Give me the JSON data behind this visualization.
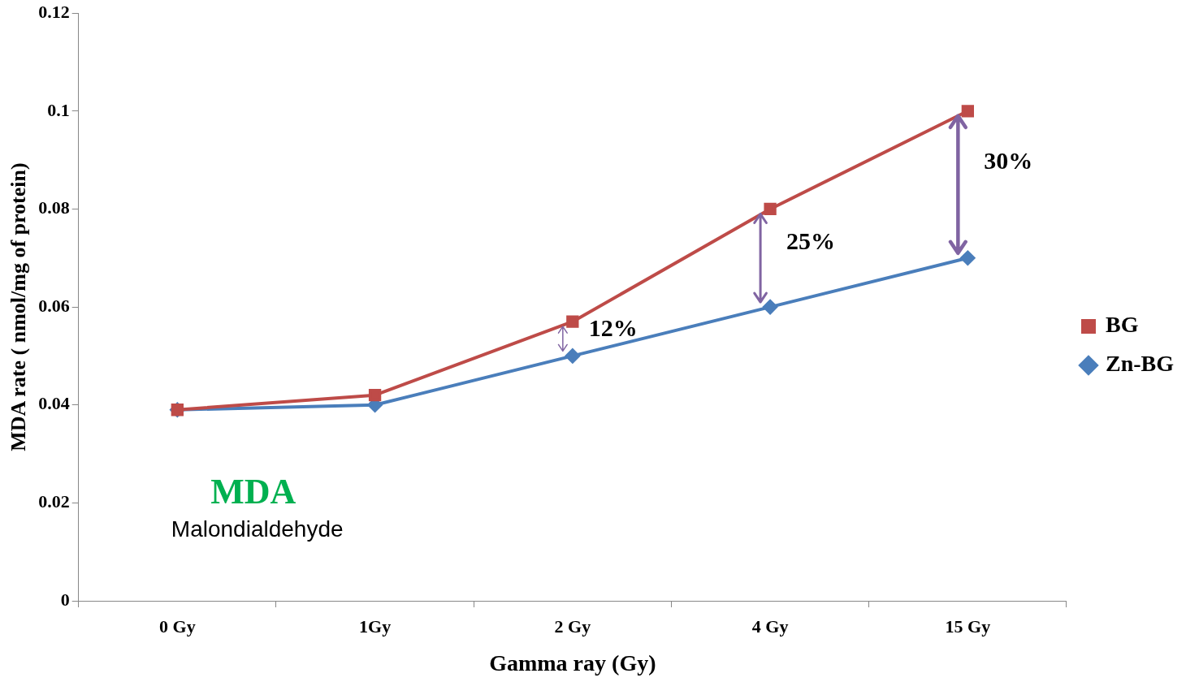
{
  "chart_data": {
    "type": "line",
    "xlabel": "Gamma ray (Gy)",
    "ylabel": "MDA rate ( nmol/mg of protein)",
    "categories": [
      "0 Gy",
      "1Gy",
      "2 Gy",
      "4 Gy",
      "15 Gy"
    ],
    "series": [
      {
        "name": "Zn-BG",
        "color": "#4a7ebb",
        "marker": "diamond",
        "values": [
          0.039,
          0.04,
          0.05,
          0.06,
          0.07
        ]
      },
      {
        "name": "BG",
        "color": "#be4b48",
        "marker": "square",
        "values": [
          0.039,
          0.042,
          0.057,
          0.08,
          0.1
        ]
      }
    ],
    "ylim": [
      0,
      0.12
    ],
    "yticks": [
      0,
      0.02,
      0.04,
      0.06,
      0.08,
      0.1,
      0.12
    ],
    "grid": false,
    "legend": "right",
    "annotations": [
      "MDA",
      "Malondialdehyde",
      "12%",
      "25%",
      "30%"
    ]
  }
}
